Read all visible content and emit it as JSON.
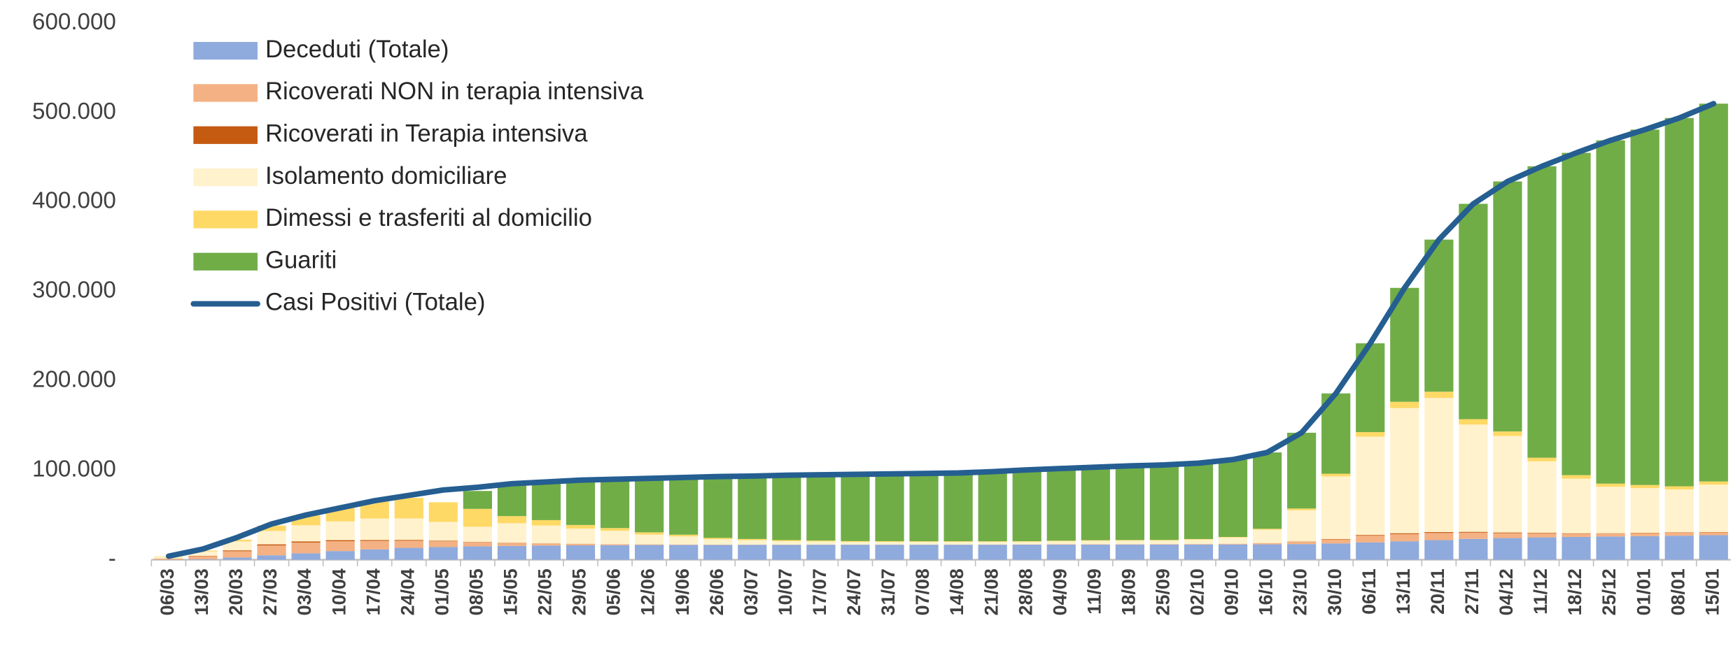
{
  "chart_data": {
    "type": "bar",
    "stacked": true,
    "categories": [
      "06/03",
      "13/03",
      "20/03",
      "27/03",
      "03/04",
      "10/04",
      "17/04",
      "24/04",
      "01/05",
      "08/05",
      "15/05",
      "22/05",
      "29/05",
      "05/06",
      "12/06",
      "19/06",
      "26/06",
      "03/07",
      "10/07",
      "17/07",
      "24/07",
      "31/07",
      "07/08",
      "14/08",
      "21/08",
      "28/08",
      "04/09",
      "11/09",
      "18/09",
      "25/09",
      "02/10",
      "09/10",
      "16/10",
      "23/10",
      "30/10",
      "06/11",
      "13/11",
      "20/11",
      "27/11",
      "04/12",
      "11/12",
      "18/12",
      "25/12",
      "01/01",
      "08/01",
      "15/01"
    ],
    "series": [
      {
        "name": "Deceduti (Totale)",
        "color": "#8faadc",
        "values": [
          100,
          600,
          2500,
          4900,
          7200,
          9700,
          11600,
          13300,
          14200,
          15000,
          15500,
          15900,
          16100,
          16300,
          16500,
          16600,
          16600,
          16700,
          16700,
          16800,
          16800,
          16800,
          16800,
          16800,
          16800,
          16900,
          16900,
          16900,
          17000,
          17000,
          17000,
          17100,
          17200,
          17500,
          18200,
          19400,
          20600,
          21900,
          23300,
          24200,
          25000,
          25500,
          26000,
          26400,
          26900,
          27400
        ]
      },
      {
        "name": "Ricoverati NON in terapia intensiva",
        "color": "#f4b183",
        "values": [
          1000,
          3000,
          7000,
          11000,
          12000,
          11000,
          9500,
          8000,
          6500,
          4500,
          3000,
          2200,
          1600,
          1000,
          600,
          400,
          300,
          200,
          150,
          150,
          150,
          150,
          150,
          150,
          200,
          200,
          300,
          300,
          400,
          500,
          500,
          700,
          1300,
          2500,
          4500,
          7500,
          8000,
          8000,
          7000,
          5500,
          4500,
          3600,
          3200,
          3300,
          3300,
          3200
        ]
      },
      {
        "name": "Ricoverati in Terapia intensiva",
        "color": "#c55a11",
        "values": [
          200,
          600,
          1000,
          1300,
          1300,
          1200,
          1000,
          900,
          600,
          400,
          300,
          200,
          150,
          100,
          50,
          30,
          20,
          20,
          10,
          10,
          10,
          10,
          10,
          10,
          20,
          20,
          20,
          20,
          30,
          30,
          50,
          70,
          100,
          300,
          500,
          800,
          1000,
          1000,
          900,
          750,
          600,
          500,
          400,
          400,
          400,
          400
        ]
      },
      {
        "name": "Isolamento domiciliare",
        "color": "#fff2cc",
        "values": [
          2000,
          5000,
          10000,
          15000,
          18000,
          21000,
          24000,
          24000,
          21000,
          17000,
          22000,
          20000,
          17000,
          15000,
          11000,
          9000,
          6000,
          5000,
          4000,
          3500,
          3000,
          3000,
          3000,
          3000,
          3000,
          3000,
          3500,
          4000,
          4000,
          4000,
          5000,
          7000,
          15000,
          35000,
          70000,
          110000,
          140000,
          150000,
          120000,
          108000,
          80000,
          61000,
          52000,
          50000,
          48000,
          53000
        ]
      },
      {
        "name": "Dimessi e trasferiti al domicilio",
        "color": "#ffd966",
        "values": [
          500,
          1000,
          2000,
          6000,
          11000,
          15000,
          19000,
          23000,
          22000,
          20000,
          8000,
          6000,
          4000,
          3000,
          2500,
          2000,
          1500,
          1300,
          1100,
          1000,
          900,
          800,
          700,
          700,
          600,
          600,
          600,
          600,
          600,
          600,
          600,
          600,
          1000,
          2000,
          3000,
          5000,
          7000,
          7000,
          6000,
          5000,
          4000,
          4000,
          3500,
          3500,
          3500,
          3500
        ]
      },
      {
        "name": "Guariti",
        "color": "#70ad47",
        "values": [
          0,
          0,
          0,
          0,
          0,
          0,
          0,
          0,
          0,
          20000,
          36000,
          42700,
          50000,
          54600,
          60300,
          64000,
          68600,
          70300,
          72500,
          73500,
          74600,
          75200,
          75800,
          76300,
          77900,
          79800,
          80700,
          81700,
          83000,
          83900,
          84900,
          86500,
          85400,
          84700,
          89800,
          99300,
          127400,
          170100,
          240800,
          279550,
          325900,
          360400,
          383900,
          397400,
          411900,
          422500
        ]
      },
      {
        "name": "Casi Positivi (Totale)",
        "color": "#255e91",
        "type": "line",
        "values": [
          4000,
          12000,
          25000,
          40000,
          50000,
          58000,
          66000,
          72000,
          78000,
          81000,
          85000,
          87000,
          89000,
          90000,
          91000,
          92000,
          93000,
          93500,
          94500,
          95000,
          95500,
          96000,
          96500,
          97000,
          98500,
          100500,
          102000,
          103500,
          105000,
          106000,
          108000,
          112000,
          120000,
          142000,
          186000,
          242000,
          304000,
          358000,
          398000,
          423000,
          440000,
          455000,
          469000,
          481000,
          494000,
          510000
        ]
      }
    ],
    "ylim": [
      0,
      600000
    ],
    "yticks": [
      {
        "value": 0,
        "label": "-"
      },
      {
        "value": 100000,
        "label": "100.000"
      },
      {
        "value": 200000,
        "label": "200.000"
      },
      {
        "value": 300000,
        "label": "300.000"
      },
      {
        "value": 400000,
        "label": "400.000"
      },
      {
        "value": 500000,
        "label": "500.000"
      },
      {
        "value": 600000,
        "label": "600.000"
      }
    ],
    "grid": true,
    "legend": "top-left"
  }
}
